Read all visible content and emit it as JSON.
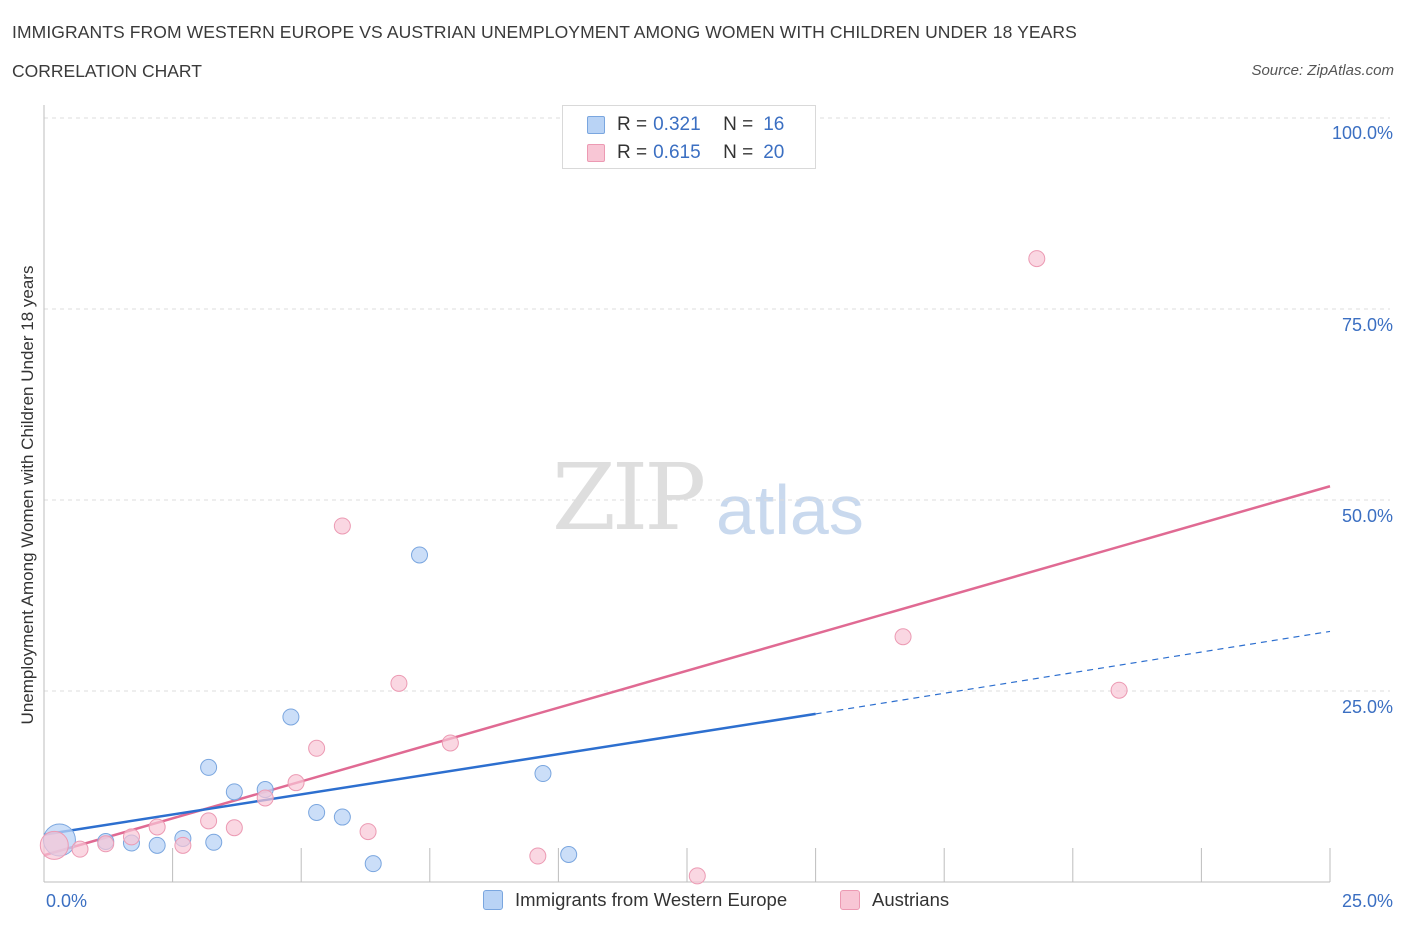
{
  "header": {
    "title": "IMMIGRANTS FROM WESTERN EUROPE VS AUSTRIAN UNEMPLOYMENT AMONG WOMEN WITH CHILDREN UNDER 18 YEARS",
    "subtitle": "CORRELATION CHART",
    "source": "Source: ZipAtlas.com"
  },
  "watermark": {
    "zip": "ZIP",
    "atlas": "atlas"
  },
  "legend": {
    "series1": {
      "r_label": "R =",
      "r_value": "0.321",
      "n_label": "N =",
      "n_value": "16"
    },
    "series2": {
      "r_label": "R =",
      "r_value": "0.615",
      "n_label": "N =",
      "n_value": "20"
    }
  },
  "colors": {
    "blue_fill": "#b9d3f5",
    "blue_stroke": "#7aa6df",
    "blue_line": "#2d6fcf",
    "pink_fill": "#f8c6d5",
    "pink_stroke": "#ec9ab3",
    "pink_line": "#e06a93",
    "grid": "#dddddd",
    "accent_text": "#3b6fc2"
  },
  "chart_data": {
    "type": "scatter",
    "title": "IMMIGRANTS FROM WESTERN EUROPE VS AUSTRIAN UNEMPLOYMENT AMONG WOMEN WITH CHILDREN UNDER 18 YEARS",
    "xlabel": "",
    "ylabel": "Unemployment Among Women with Children Under 18 years",
    "xlim": [
      0,
      25
    ],
    "ylim": [
      0,
      100
    ],
    "x_tick_labels": [
      "0.0%",
      "25.0%"
    ],
    "y_tick_labels": [
      "100.0%",
      "75.0%",
      "50.0%",
      "25.0%"
    ],
    "y_tick_values": [
      100,
      75,
      50,
      25
    ],
    "grid": true,
    "legend_position": "top-center",
    "series": [
      {
        "name": "Immigrants from Western Europe",
        "color": "#b9d3f5",
        "R": 0.321,
        "N": 16,
        "points": [
          {
            "x": 0.3,
            "y": 5.5,
            "big": true
          },
          {
            "x": 1.2,
            "y": 5.3
          },
          {
            "x": 1.7,
            "y": 5.1
          },
          {
            "x": 2.2,
            "y": 4.8
          },
          {
            "x": 2.7,
            "y": 5.7
          },
          {
            "x": 3.3,
            "y": 5.2
          },
          {
            "x": 3.2,
            "y": 15.0
          },
          {
            "x": 3.7,
            "y": 11.8
          },
          {
            "x": 4.3,
            "y": 12.1
          },
          {
            "x": 4.8,
            "y": 21.6
          },
          {
            "x": 5.3,
            "y": 9.1
          },
          {
            "x": 5.8,
            "y": 8.5
          },
          {
            "x": 6.4,
            "y": 2.4
          },
          {
            "x": 7.3,
            "y": 42.8
          },
          {
            "x": 9.7,
            "y": 14.2
          },
          {
            "x": 10.2,
            "y": 3.6
          }
        ],
        "trend": {
          "x0": 0,
          "y0": 6.2,
          "x1": 15,
          "y1": 22.0,
          "dash_to_x": 25,
          "dash_to_y": 32.8
        }
      },
      {
        "name": "Austrians",
        "color": "#f8c6d5",
        "R": 0.615,
        "N": 20,
        "points": [
          {
            "x": 0.2,
            "y": 4.8,
            "big": true
          },
          {
            "x": 0.7,
            "y": 4.3
          },
          {
            "x": 1.2,
            "y": 5.0
          },
          {
            "x": 1.7,
            "y": 5.9
          },
          {
            "x": 2.2,
            "y": 7.2
          },
          {
            "x": 2.7,
            "y": 4.8
          },
          {
            "x": 3.2,
            "y": 8.0
          },
          {
            "x": 3.7,
            "y": 7.1
          },
          {
            "x": 4.3,
            "y": 11.0
          },
          {
            "x": 4.9,
            "y": 13.0
          },
          {
            "x": 5.3,
            "y": 17.5
          },
          {
            "x": 5.8,
            "y": 46.6
          },
          {
            "x": 6.3,
            "y": 6.6
          },
          {
            "x": 6.9,
            "y": 26.0
          },
          {
            "x": 7.9,
            "y": 18.2
          },
          {
            "x": 9.6,
            "y": 3.4
          },
          {
            "x": 12.7,
            "y": 0.8
          },
          {
            "x": 16.7,
            "y": 32.1
          },
          {
            "x": 19.3,
            "y": 81.6
          },
          {
            "x": 20.9,
            "y": 25.1
          }
        ],
        "trend": {
          "x0": 0,
          "y0": 3.5,
          "x1": 25,
          "y1": 51.8
        }
      }
    ]
  },
  "bottom_legend": {
    "series1_label": "Immigrants from Western Europe",
    "series2_label": "Austrians"
  }
}
